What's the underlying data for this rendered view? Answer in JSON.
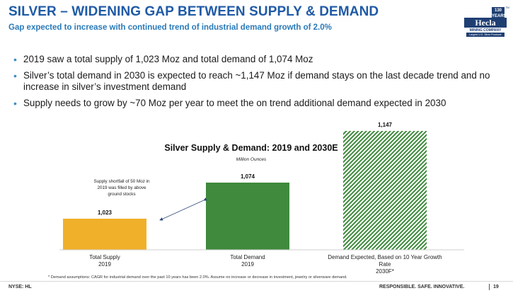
{
  "header": {
    "title": "SILVER – WIDENING GAP BETWEEN SUPPLY & DEMAND",
    "subtitle": "Gap expected to increase with continued trend of industrial demand growth of 2.0%"
  },
  "logo": {
    "year": "130 YEARS",
    "name": "Hecla",
    "company": "MINING COMPANY",
    "tagline": "Largest U.S. Silver Producer",
    "tm": "TM"
  },
  "bullets": [
    "2019 saw a total supply of 1,023 Moz and total demand of 1,074 Moz",
    "Silver’s total demand in 2030 is expected to reach ~1,147 Moz if demand stays on the last decade trend and no increase in silver’s investment demand",
    "Supply needs to grow by ~70 Moz per year to meet the on trend additional demand expected in 2030"
  ],
  "chart_data": {
    "type": "bar",
    "title": "Silver Supply & Demand: 2019 and 2030E",
    "subtitle": "Million Ounces",
    "categories": [
      "Total Supply 2019",
      "Total Demand 2019",
      "Demand Expected, Based on 10 Year Growth Rate 2030F*"
    ],
    "category_lines": [
      [
        "Total Supply",
        "2019"
      ],
      [
        "Total Demand",
        "2019"
      ],
      [
        "Demand Expected, Based on 10 Year Growth",
        "Rate",
        "2030F*"
      ]
    ],
    "values": [
      1023,
      1074,
      1147
    ],
    "value_labels": [
      "1,023",
      "1,074",
      "1,147"
    ],
    "colors": [
      "#f0b02a",
      "#3f8a3d",
      "#3f8a3d"
    ],
    "fill_styles": [
      "solid",
      "solid",
      "hatched"
    ],
    "annotation": [
      "Supply shortfall of 50 Moz in",
      "2019 was filled by above",
      "ground stocks"
    ]
  },
  "footer": {
    "footnote": "* Demand assumptions: CAGR for industrial demand over the past 10 years has been 2.0%. Assume no increase or decrease in investment, jewelry or silverware demand.",
    "ticker": "NYSE: HL",
    "tagline": "RESPONSIBLE. SAFE. INNOVATIVE.",
    "page": "19"
  }
}
